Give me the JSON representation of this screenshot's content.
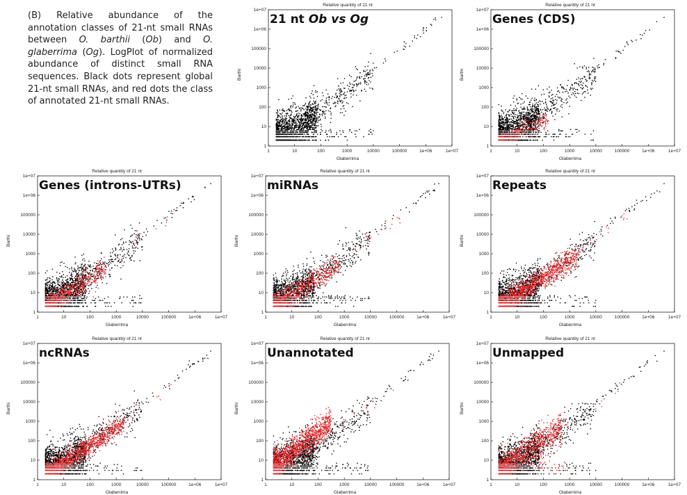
{
  "caption": {
    "p1": "(B) Relative abundance of the annotation classes of 21-nt small RNAs between ",
    "sp1": "O. barthii",
    "p2": " (",
    "ab1": "Ob",
    "p3": ") and ",
    "sp2": "O. glaberrima",
    "p4": " (",
    "ab2": "Og",
    "p5": "). LogPlot of normalized abundance of distinct small RNA sequences. Black dots represent global 21-nt small RNAs, and red dots the class of annotated 21-nt small RNAs."
  },
  "colors": {
    "global": "#000000",
    "annotated": "#e8262a"
  },
  "chart_data": [
    {
      "type": "scatter",
      "graph_title": "Relative quantity of 21 nt",
      "label_a": "21 nt ",
      "label_b": "Ob vs Og",
      "label_c": "",
      "xlabel": "Glaberrima",
      "ylabel": "Barthi",
      "scale": "log-log",
      "xlim": [
        1,
        10000000
      ],
      "ylim": [
        1,
        10000000
      ],
      "x_ticks": [
        "1",
        "10",
        "100",
        "1000",
        "10000",
        "100000",
        "1e+06",
        "1e+07"
      ],
      "y_ticks": [
        "1",
        "10",
        "100",
        "1000",
        "10000",
        "100000",
        "1e+06",
        "1e+07"
      ],
      "series": [],
      "red_profile": "none"
    },
    {
      "type": "scatter",
      "graph_title": "Relative quantity of 21 nt",
      "label_a": "Genes (CDS)",
      "label_b": "",
      "label_c": "",
      "xlabel": "Glaberrima",
      "ylabel": "Barthi",
      "scale": "log-log",
      "xlim": [
        1,
        10000000
      ],
      "ylim": [
        1,
        10000000
      ],
      "x_ticks": [
        "1",
        "10",
        "100",
        "1000",
        "10000",
        "100000",
        "1e+06",
        "1e+07"
      ],
      "y_ticks": [
        "1",
        "10",
        "100",
        "1000",
        "10000",
        "100000",
        "1e+06",
        "1e+07"
      ],
      "series": [],
      "red_profile": "cds"
    },
    {
      "type": "scatter",
      "graph_title": "Relative quantity of 21 nt",
      "label_a": "Genes (introns-UTRs)",
      "label_b": "",
      "label_c": "",
      "xlabel": "Glaberrima",
      "ylabel": "Barthi",
      "scale": "log-log",
      "xlim": [
        1,
        10000000
      ],
      "ylim": [
        1,
        10000000
      ],
      "x_ticks": [
        "1",
        "10",
        "100",
        "1000",
        "10000",
        "100000",
        "1e+06",
        "1e+07"
      ],
      "y_ticks": [
        "1",
        "10",
        "100",
        "1000",
        "10000",
        "100000",
        "1e+06",
        "1e+07"
      ],
      "series": [],
      "red_profile": "introns"
    },
    {
      "type": "scatter",
      "graph_title": "Relative quantity of 21 nt",
      "label_a": "miRNAs",
      "label_b": "",
      "label_c": "",
      "xlabel": "Glaberrima",
      "ylabel": "Barthi",
      "scale": "log-log",
      "xlim": [
        1,
        10000000
      ],
      "ylim": [
        1,
        10000000
      ],
      "x_ticks": [
        "1",
        "10",
        "100",
        "1000",
        "10000",
        "100000",
        "1e+06",
        "1e+07"
      ],
      "y_ticks": [
        "1",
        "10",
        "100",
        "1000",
        "10000",
        "100000",
        "1e+06",
        "1e+07"
      ],
      "series": [],
      "red_profile": "mirna"
    },
    {
      "type": "scatter",
      "graph_title": "Relative quantity of 21 nt",
      "label_a": "Repeats",
      "label_b": "",
      "label_c": "",
      "xlabel": "Glaberrima",
      "ylabel": "Barthi",
      "scale": "log-log",
      "xlim": [
        1,
        10000000
      ],
      "ylim": [
        1,
        10000000
      ],
      "x_ticks": [
        "1",
        "10",
        "100",
        "1000",
        "10000",
        "100000",
        "1e+06",
        "1e+07"
      ],
      "y_ticks": [
        "1",
        "10",
        "100",
        "1000",
        "10000",
        "100000",
        "1e+06",
        "1e+07"
      ],
      "series": [],
      "red_profile": "repeats"
    },
    {
      "type": "scatter",
      "graph_title": "Relative quantity of 21 nt",
      "label_a": "ncRNAs",
      "label_b": "",
      "label_c": "",
      "xlabel": "Glaberrima",
      "ylabel": "Barthi",
      "scale": "log-log",
      "xlim": [
        1,
        10000000
      ],
      "ylim": [
        1,
        10000000
      ],
      "x_ticks": [
        "1",
        "10",
        "100",
        "1000",
        "10000",
        "100000",
        "1e+06",
        "1e+07"
      ],
      "y_ticks": [
        "1",
        "10",
        "100",
        "1000",
        "10000",
        "100000",
        "1e+06",
        "1e+07"
      ],
      "series": [],
      "red_profile": "ncrna"
    },
    {
      "type": "scatter",
      "graph_title": "Relative quantity of 21 nt",
      "label_a": "Unannotated",
      "label_b": "",
      "label_c": "",
      "xlabel": "Glaberrima",
      "ylabel": "Barthi",
      "scale": "log-log",
      "xlim": [
        1,
        10000000
      ],
      "ylim": [
        1,
        10000000
      ],
      "x_ticks": [
        "1",
        "10",
        "100",
        "1000",
        "10000",
        "100000",
        "1e+06",
        "1e+07"
      ],
      "y_ticks": [
        "1",
        "10",
        "100",
        "1000",
        "10000",
        "100000",
        "1e+06",
        "1e+07"
      ],
      "series": [],
      "red_profile": "unannotated"
    },
    {
      "type": "scatter",
      "graph_title": "Relative quantity of 21 nt",
      "label_a": "Unmapped",
      "label_b": "",
      "label_c": "",
      "xlabel": "Glaberrima",
      "ylabel": "Barthi",
      "scale": "log-log",
      "xlim": [
        1,
        10000000
      ],
      "ylim": [
        1,
        10000000
      ],
      "x_ticks": [
        "1",
        "10",
        "100",
        "1000",
        "10000",
        "100000",
        "1e+06",
        "1e+07"
      ],
      "y_ticks": [
        "1",
        "10",
        "100",
        "1000",
        "10000",
        "100000",
        "1e+06",
        "1e+07"
      ],
      "series": [],
      "red_profile": "unmapped"
    }
  ]
}
